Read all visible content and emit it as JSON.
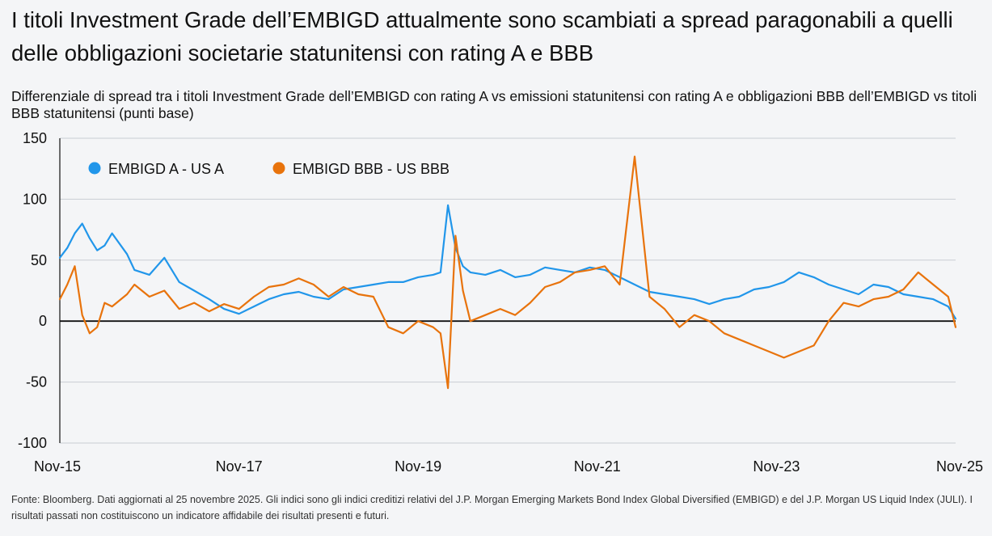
{
  "title": "I titoli Investment Grade dell’EMBIGD attualmente sono scambiati a spread paragonabili a quelli delle obbligazioni societarie statunitensi con rating A e BBB",
  "subtitle": "Differenziale di spread tra i titoli Investment Grade dell’EMBIGD con rating A vs emissioni statunitensi con rating A e obbligazioni BBB dell’EMBIGD vs titoli BBB statunitensi (punti base)",
  "footer": "Fonte: Bloomberg. Dati aggiornati al 25 novembre 2025. Gli indici sono gli indici creditizi relativi del J.P. Morgan Emerging Markets Bond Index Global Diversified (EMBIGD) e del J.P. Morgan US Liquid Index (JULI).  I risultati passati non costituiscono un indicatore affidabile dei risultati presenti e futuri.",
  "chart_data": {
    "type": "line",
    "x_ticks": [
      "Nov-15",
      "Nov-17",
      "Nov-19",
      "Nov-21",
      "Nov-23",
      "Nov-25"
    ],
    "y_ticks": [
      "150",
      "100",
      "50",
      "0",
      "-50",
      "-100"
    ],
    "ylim": [
      -100,
      150
    ],
    "grid": true,
    "legend_position": "top-left",
    "series": [
      {
        "name": "EMBIGD A - US A",
        "color": "#2196ea",
        "x": [
          "2015-11",
          "2015-12",
          "2016-01",
          "2016-02",
          "2016-03",
          "2016-04",
          "2016-05",
          "2016-06",
          "2016-08",
          "2016-09",
          "2016-11",
          "2017-01",
          "2017-03",
          "2017-05",
          "2017-07",
          "2017-09",
          "2017-11",
          "2018-01",
          "2018-03",
          "2018-05",
          "2018-07",
          "2018-09",
          "2018-11",
          "2019-01",
          "2019-03",
          "2019-05",
          "2019-07",
          "2019-09",
          "2019-11",
          "2020-01",
          "2020-02",
          "2020-03",
          "2020-04",
          "2020-05",
          "2020-06",
          "2020-08",
          "2020-10",
          "2020-12",
          "2021-02",
          "2021-04",
          "2021-06",
          "2021-08",
          "2021-10",
          "2021-12",
          "2022-02",
          "2022-04",
          "2022-06",
          "2022-08",
          "2022-10",
          "2022-12",
          "2023-02",
          "2023-04",
          "2023-06",
          "2023-08",
          "2023-10",
          "2023-12",
          "2024-02",
          "2024-04",
          "2024-06",
          "2024-08",
          "2024-10",
          "2024-12",
          "2025-02",
          "2025-04",
          "2025-06",
          "2025-08",
          "2025-10",
          "2025-11"
        ],
        "values": [
          52,
          60,
          72,
          80,
          68,
          58,
          62,
          72,
          55,
          42,
          38,
          52,
          32,
          25,
          18,
          10,
          6,
          12,
          18,
          22,
          24,
          20,
          18,
          26,
          28,
          30,
          32,
          32,
          36,
          38,
          40,
          95,
          60,
          45,
          40,
          38,
          42,
          36,
          38,
          44,
          42,
          40,
          44,
          42,
          36,
          30,
          24,
          22,
          20,
          18,
          14,
          18,
          20,
          26,
          28,
          32,
          40,
          36,
          30,
          26,
          22,
          30,
          28,
          22,
          20,
          18,
          12,
          2
        ]
      },
      {
        "name": "EMBIGD BBB - US BBB",
        "color": "#e8730c",
        "x": [
          "2015-11",
          "2015-12",
          "2016-01",
          "2016-02",
          "2016-03",
          "2016-04",
          "2016-05",
          "2016-06",
          "2016-08",
          "2016-09",
          "2016-11",
          "2017-01",
          "2017-03",
          "2017-05",
          "2017-07",
          "2017-09",
          "2017-11",
          "2018-01",
          "2018-03",
          "2018-05",
          "2018-07",
          "2018-09",
          "2018-11",
          "2019-01",
          "2019-03",
          "2019-05",
          "2019-07",
          "2019-09",
          "2019-11",
          "2020-01",
          "2020-02",
          "2020-03",
          "2020-04",
          "2020-05",
          "2020-06",
          "2020-08",
          "2020-10",
          "2020-12",
          "2021-02",
          "2021-04",
          "2021-06",
          "2021-08",
          "2021-10",
          "2021-12",
          "2022-02",
          "2022-04",
          "2022-06",
          "2022-08",
          "2022-10",
          "2022-12",
          "2023-02",
          "2023-04",
          "2023-06",
          "2023-08",
          "2023-10",
          "2023-12",
          "2024-02",
          "2024-04",
          "2024-06",
          "2024-08",
          "2024-10",
          "2024-12",
          "2025-02",
          "2025-04",
          "2025-06",
          "2025-08",
          "2025-10",
          "2025-11"
        ],
        "values": [
          18,
          30,
          45,
          5,
          -10,
          -5,
          15,
          12,
          22,
          30,
          20,
          25,
          10,
          15,
          8,
          14,
          10,
          20,
          28,
          30,
          35,
          30,
          20,
          28,
          22,
          20,
          -5,
          -10,
          0,
          -5,
          -10,
          -55,
          70,
          25,
          0,
          5,
          10,
          5,
          15,
          28,
          32,
          40,
          42,
          45,
          30,
          135,
          20,
          10,
          -5,
          5,
          0,
          -10,
          -15,
          -20,
          -25,
          -30,
          -25,
          -20,
          0,
          15,
          12,
          18,
          20,
          26,
          40,
          30,
          20,
          -5
        ]
      }
    ]
  }
}
